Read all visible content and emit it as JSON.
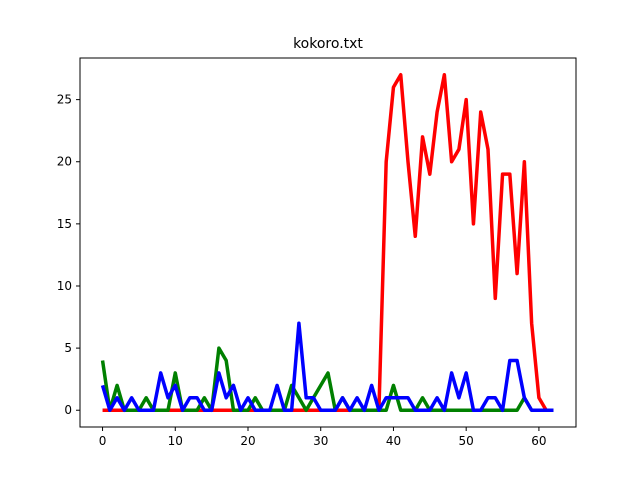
{
  "chart_data": {
    "type": "line",
    "title": "kokoro.txt",
    "xlabel": "",
    "ylabel": "",
    "xlim": [
      -3.1,
      65.1
    ],
    "ylim": [
      -1.35,
      28.35
    ],
    "xticks": [
      0,
      10,
      20,
      30,
      40,
      50,
      60
    ],
    "yticks": [
      0,
      5,
      10,
      15,
      20,
      25
    ],
    "grid": false,
    "legend": "none",
    "series": [
      {
        "color": "#ff0000",
        "values": [
          0,
          0,
          0,
          0,
          0,
          0,
          0,
          0,
          0,
          0,
          0,
          0,
          0,
          0,
          0,
          0,
          0,
          0,
          0,
          0,
          0,
          0,
          0,
          0,
          0,
          0,
          0,
          0,
          0,
          0,
          0,
          0,
          0,
          0,
          0,
          0,
          0,
          0,
          0,
          20,
          26,
          27,
          20,
          14,
          22,
          19,
          24,
          27,
          20,
          21,
          25,
          15,
          24,
          21,
          9,
          19,
          19,
          11,
          20,
          7,
          1,
          0,
          0
        ]
      },
      {
        "color": "#008000",
        "values": [
          4,
          0,
          2,
          0,
          0,
          0,
          1,
          0,
          0,
          0,
          3,
          0,
          0,
          0,
          1,
          0,
          5,
          4,
          0,
          0,
          0,
          1,
          0,
          0,
          0,
          0,
          2,
          1,
          0,
          1,
          2,
          3,
          0,
          1,
          0,
          0,
          0,
          0,
          0,
          0,
          2,
          0,
          0,
          0,
          1,
          0,
          0,
          0,
          0,
          0,
          0,
          0,
          0,
          0,
          0,
          0,
          0,
          0,
          1,
          0,
          0,
          0,
          0
        ]
      },
      {
        "color": "#0000ff",
        "values": [
          2,
          0,
          1,
          0,
          1,
          0,
          0,
          0,
          3,
          1,
          2,
          0,
          1,
          1,
          0,
          0,
          3,
          1,
          2,
          0,
          1,
          0,
          0,
          0,
          2,
          0,
          0,
          7,
          1,
          1,
          0,
          0,
          0,
          1,
          0,
          1,
          0,
          2,
          0,
          1,
          1,
          1,
          1,
          0,
          0,
          0,
          1,
          0,
          3,
          1,
          3,
          0,
          0,
          1,
          1,
          0,
          4,
          4,
          1,
          0,
          0,
          0,
          0
        ]
      }
    ]
  }
}
